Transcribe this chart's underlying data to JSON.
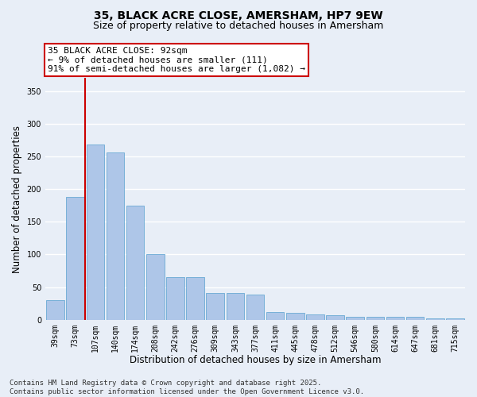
{
  "title_line1": "35, BLACK ACRE CLOSE, AMERSHAM, HP7 9EW",
  "title_line2": "Size of property relative to detached houses in Amersham",
  "xlabel": "Distribution of detached houses by size in Amersham",
  "ylabel": "Number of detached properties",
  "categories": [
    "39sqm",
    "73sqm",
    "107sqm",
    "140sqm",
    "174sqm",
    "208sqm",
    "242sqm",
    "276sqm",
    "309sqm",
    "343sqm",
    "377sqm",
    "411sqm",
    "445sqm",
    "478sqm",
    "512sqm",
    "546sqm",
    "580sqm",
    "614sqm",
    "647sqm",
    "681sqm",
    "715sqm"
  ],
  "values": [
    30,
    188,
    268,
    256,
    175,
    100,
    65,
    65,
    41,
    41,
    38,
    12,
    10,
    8,
    7,
    5,
    5,
    4,
    4,
    2,
    2
  ],
  "bar_color": "#aec6e8",
  "bar_edgecolor": "#6aaad4",
  "vline_color": "#cc0000",
  "annotation_text": "35 BLACK ACRE CLOSE: 92sqm\n← 9% of detached houses are smaller (111)\n91% of semi-detached houses are larger (1,082) →",
  "annotation_box_facecolor": "white",
  "annotation_box_edgecolor": "#cc0000",
  "ylim": [
    0,
    370
  ],
  "yticks": [
    0,
    50,
    100,
    150,
    200,
    250,
    300,
    350
  ],
  "bg_color": "#e8eef7",
  "grid_color": "white",
  "footer_text": "Contains HM Land Registry data © Crown copyright and database right 2025.\nContains public sector information licensed under the Open Government Licence v3.0.",
  "title_fontsize": 10,
  "subtitle_fontsize": 9,
  "tick_fontsize": 7,
  "ylabel_fontsize": 8.5,
  "xlabel_fontsize": 8.5,
  "annotation_fontsize": 8,
  "footer_fontsize": 6.5
}
